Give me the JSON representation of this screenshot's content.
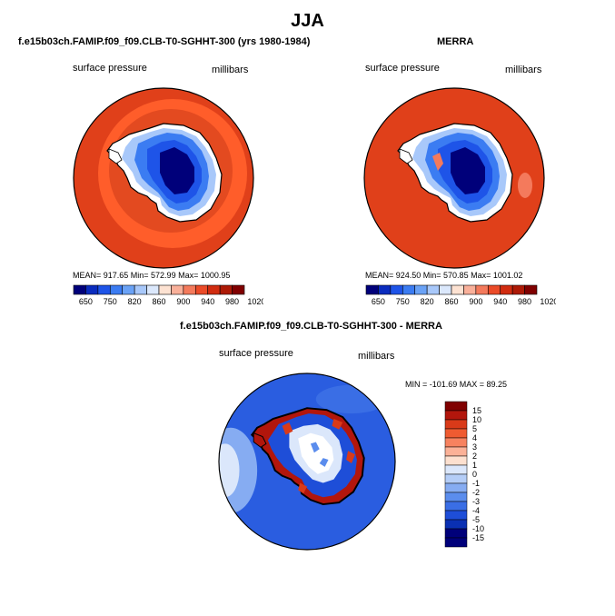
{
  "figure": {
    "title": "JJA"
  },
  "panels": [
    {
      "title": "f.e15b03ch.FAMIP.f09_f09.CLB-T0-SGHHT-300 (yrs 1980-1984)",
      "left_label": "surface pressure",
      "right_label": "millibars",
      "stats": "MEAN= 917.65   Min= 572.99   Max= 1000.95",
      "colorbar_ticks": [
        "650",
        "750",
        "820",
        "860",
        "900",
        "940",
        "980",
        "1020"
      ],
      "colors": {
        "ocean": "#e0401a",
        "outer_ring": "#ff5d2a"
      }
    },
    {
      "title": "MERRA",
      "left_label": "surface pressure",
      "right_label": "millibars",
      "stats": "MEAN= 924.50   Min= 570.85   Max= 1001.02",
      "colorbar_ticks": [
        "650",
        "750",
        "820",
        "860",
        "900",
        "940",
        "980",
        "1020"
      ],
      "colors": {
        "ocean": "#e0401a"
      }
    },
    {
      "title": "f.e15b03ch.FAMIP.f09_f09.CLB-T0-SGHHT-300 - MERRA",
      "left_label": "surface pressure",
      "right_label": "millibars",
      "stats": "MIN = -101.69  MAX =   89.25",
      "colorbar_ticks": [
        "15",
        "10",
        "5",
        "4",
        "3",
        "2",
        "1",
        "0",
        "-1",
        "-2",
        "-3",
        "-4",
        "-5",
        "-10",
        "-15"
      ],
      "colors": {
        "ocean": "#2a5de0"
      }
    }
  ],
  "colormaps": {
    "absolute": [
      "#00007a",
      "#0a2cbe",
      "#1e54e8",
      "#3b7cf2",
      "#6aa2f6",
      "#a8c8fa",
      "#dbe8fc",
      "#fde2d2",
      "#f9b09a",
      "#f47a5c",
      "#eb4b28",
      "#d12c10",
      "#ad1a06",
      "#800000"
    ],
    "difference": [
      "#800000",
      "#b2160c",
      "#d93a19",
      "#ef5b31",
      "#f7825f",
      "#fbb197",
      "#fde0cf",
      "#dbe7fb",
      "#b4cdf7",
      "#86acf2",
      "#5b8ded",
      "#3a6ee5",
      "#1e4ed8",
      "#0a30b3",
      "#00007a"
    ]
  }
}
